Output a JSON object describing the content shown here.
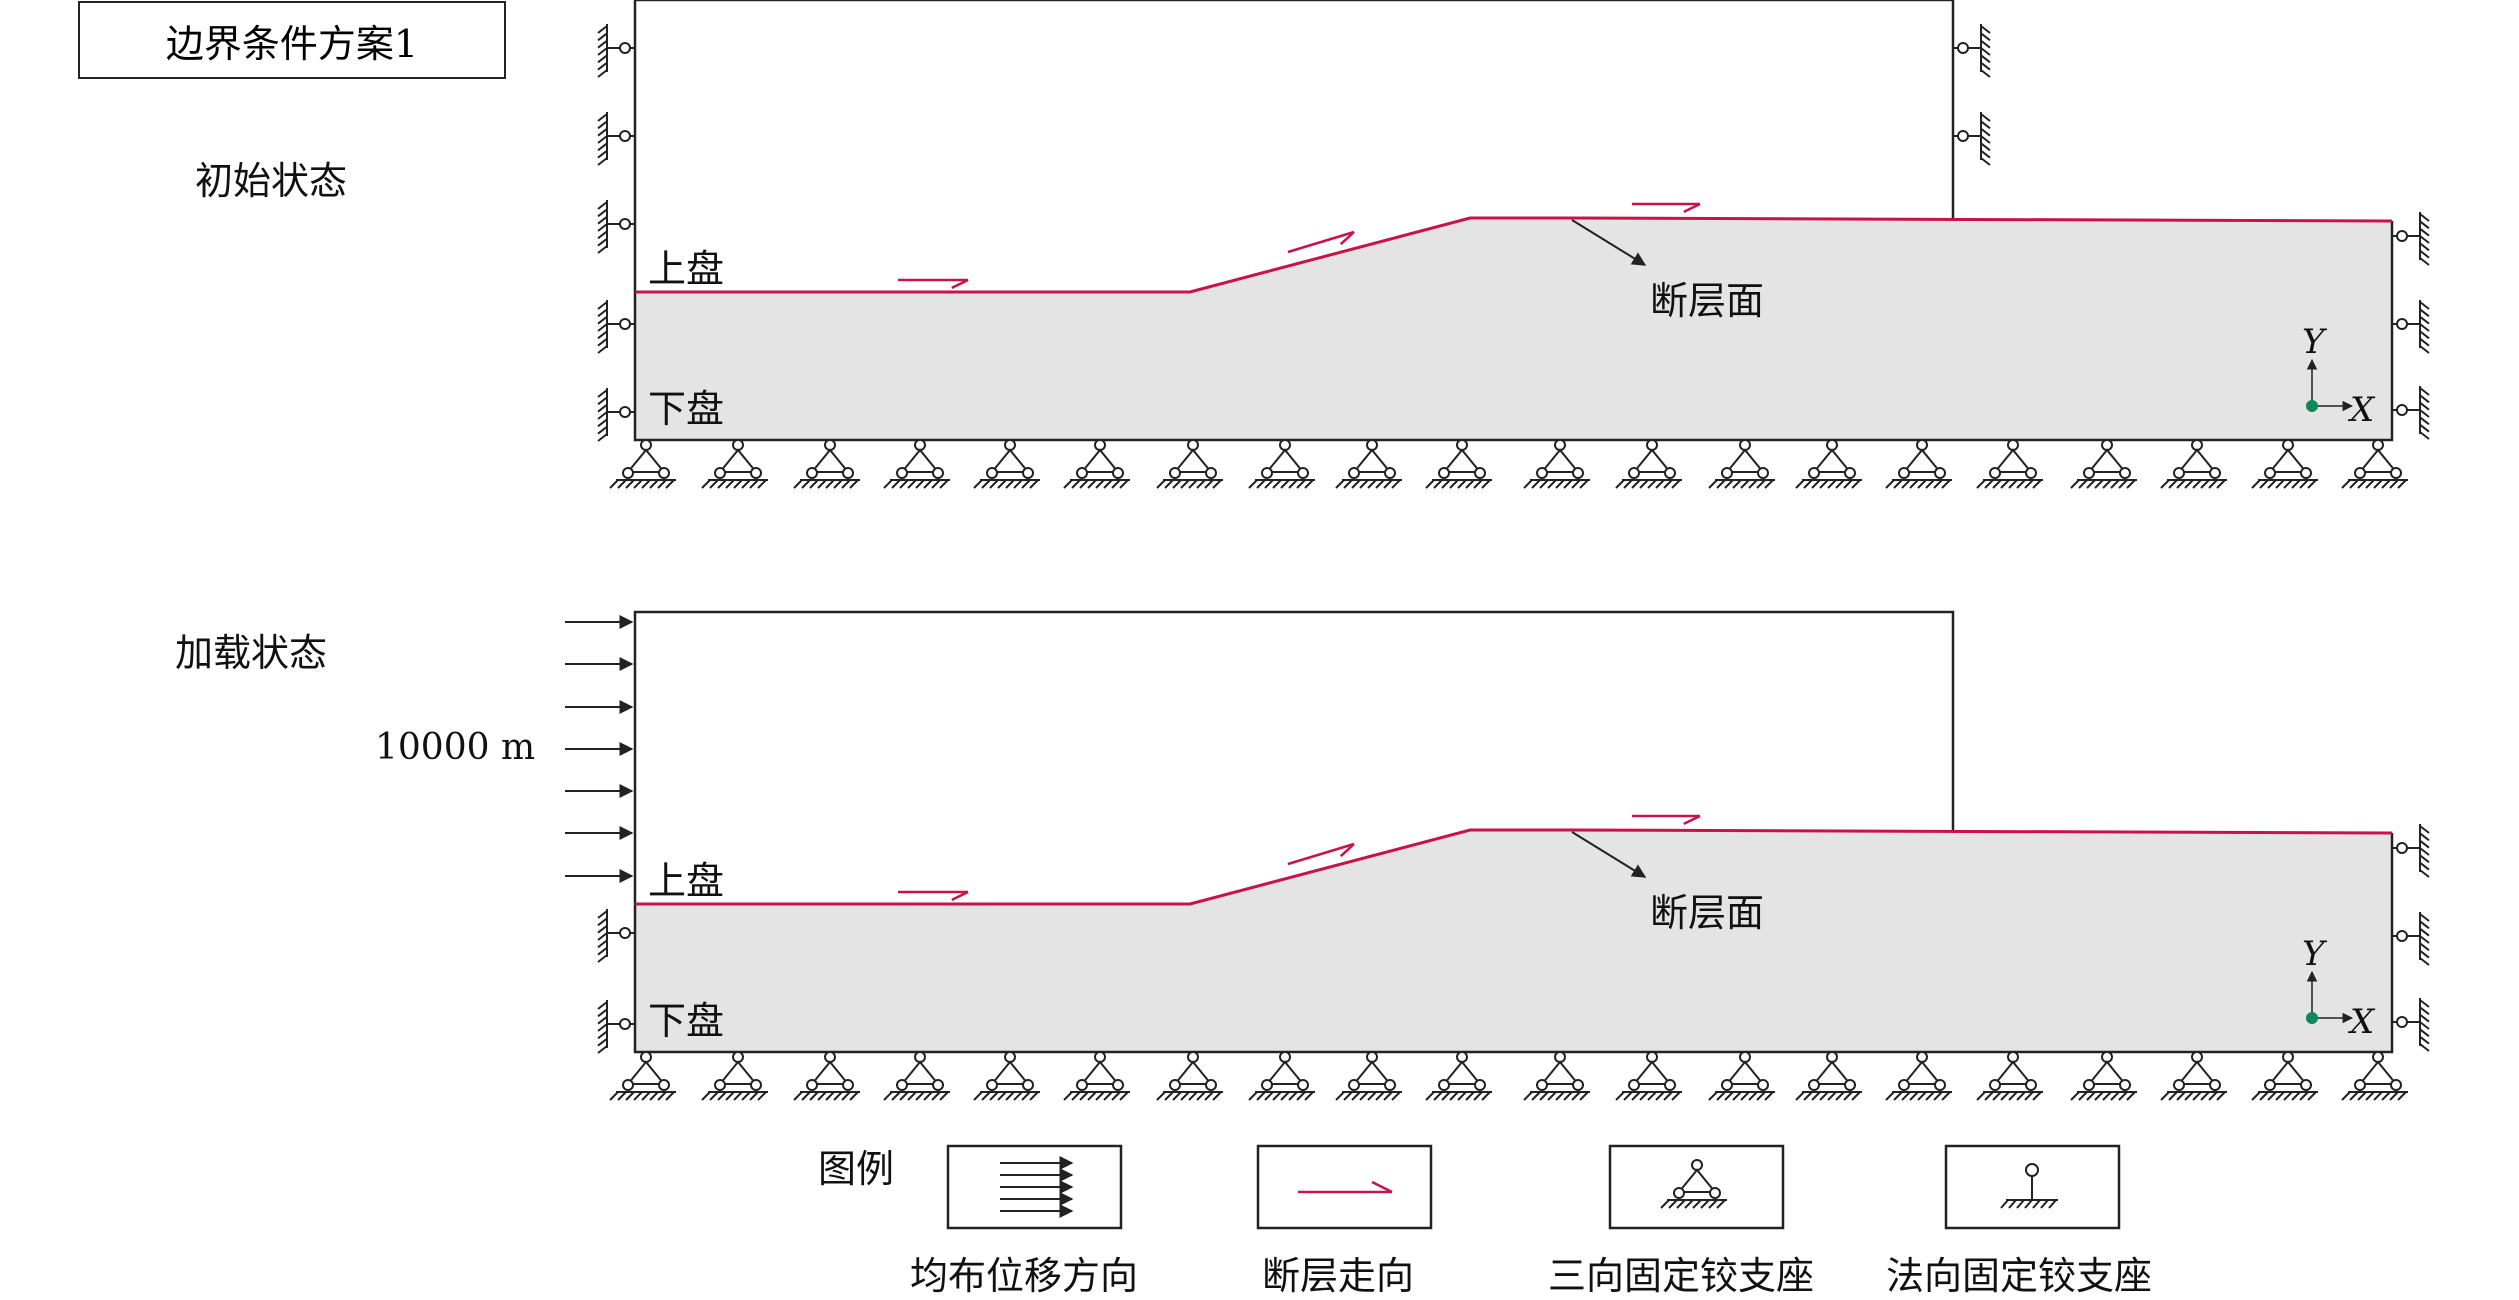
{
  "title": "边界条件方案1",
  "panels": [
    {
      "state_label": "初始状态",
      "hanging_wall": "上盘",
      "footwall": "下盘",
      "fault_plane": "断层面",
      "axis_y": "Y",
      "axis_x": "X"
    },
    {
      "state_label": "加载状态",
      "displacement_value": "10000 m",
      "hanging_wall": "上盘",
      "footwall": "下盘",
      "fault_plane": "断层面",
      "axis_y": "Y",
      "axis_x": "X"
    }
  ],
  "legend": {
    "title": "图例",
    "items": [
      {
        "label": "均布位移方向",
        "icon": "uniform-displacement-arrows-icon"
      },
      {
        "label": "断层走向",
        "icon": "fault-strike-arrow-icon"
      },
      {
        "label": "三向固定铰支座",
        "icon": "three-way-fixed-hinge-support-icon"
      },
      {
        "label": "法向固定铰支座",
        "icon": "normal-fixed-hinge-support-icon"
      }
    ]
  },
  "colors": {
    "fault": "#c8124b",
    "footwall_fill": "#e4e4e4",
    "origin_dot": "#0e8a5a",
    "line": "#222222"
  }
}
